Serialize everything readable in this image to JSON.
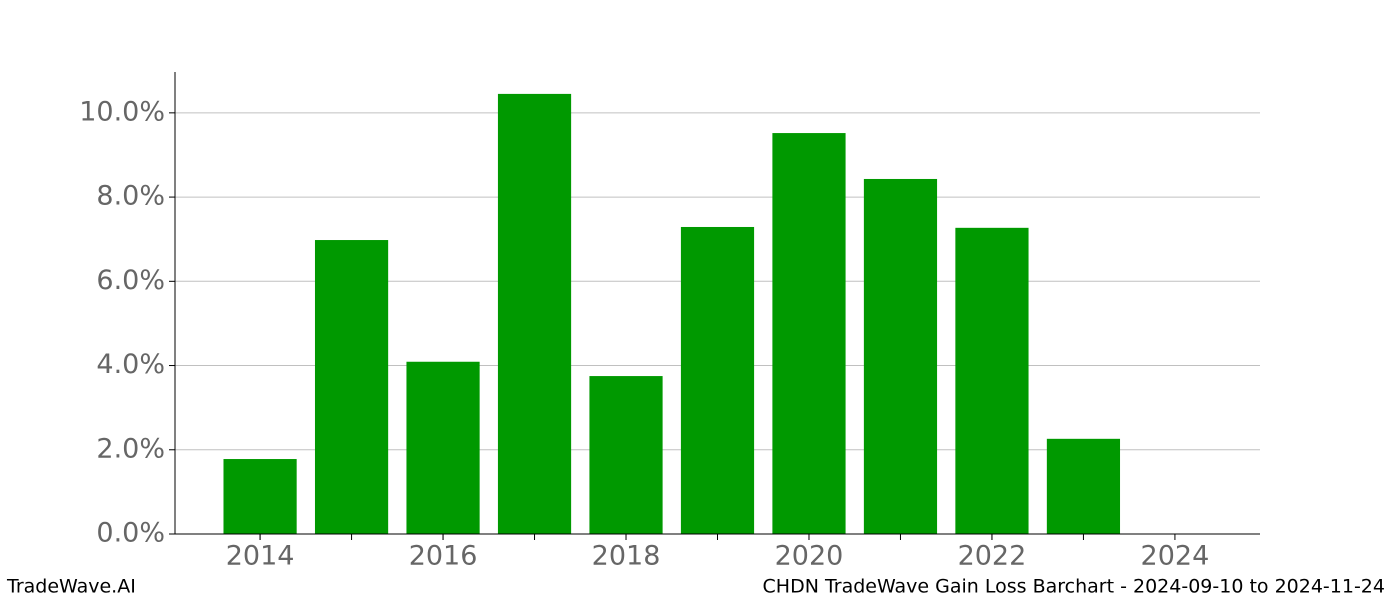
{
  "chart_data": {
    "type": "bar",
    "title": "CHDN TradeWave Gain Loss Barchart - 2024-09-10 to 2024-11-24",
    "watermark": "TradeWave.AI",
    "x": [
      2014,
      2015,
      2016,
      2017,
      2018,
      2019,
      2020,
      2021,
      2022,
      2023
    ],
    "values": [
      1.78,
      6.98,
      4.09,
      10.45,
      3.75,
      7.29,
      9.52,
      8.43,
      7.27,
      2.26
    ],
    "color": "#009900",
    "xlim": [
      2013.07,
      2024.93
    ],
    "xticks": [
      2014,
      2016,
      2018,
      2020,
      2022,
      2024
    ],
    "ylim": [
      0,
      10.97
    ],
    "yticks": [
      {
        "value": 0,
        "label": "0.0%"
      },
      {
        "value": 2,
        "label": "2.0%"
      },
      {
        "value": 4,
        "label": "4.0%"
      },
      {
        "value": 6,
        "label": "6.0%"
      },
      {
        "value": 8,
        "label": "8.0%"
      },
      {
        "value": 10,
        "label": "10.0%"
      }
    ],
    "grid": true
  }
}
